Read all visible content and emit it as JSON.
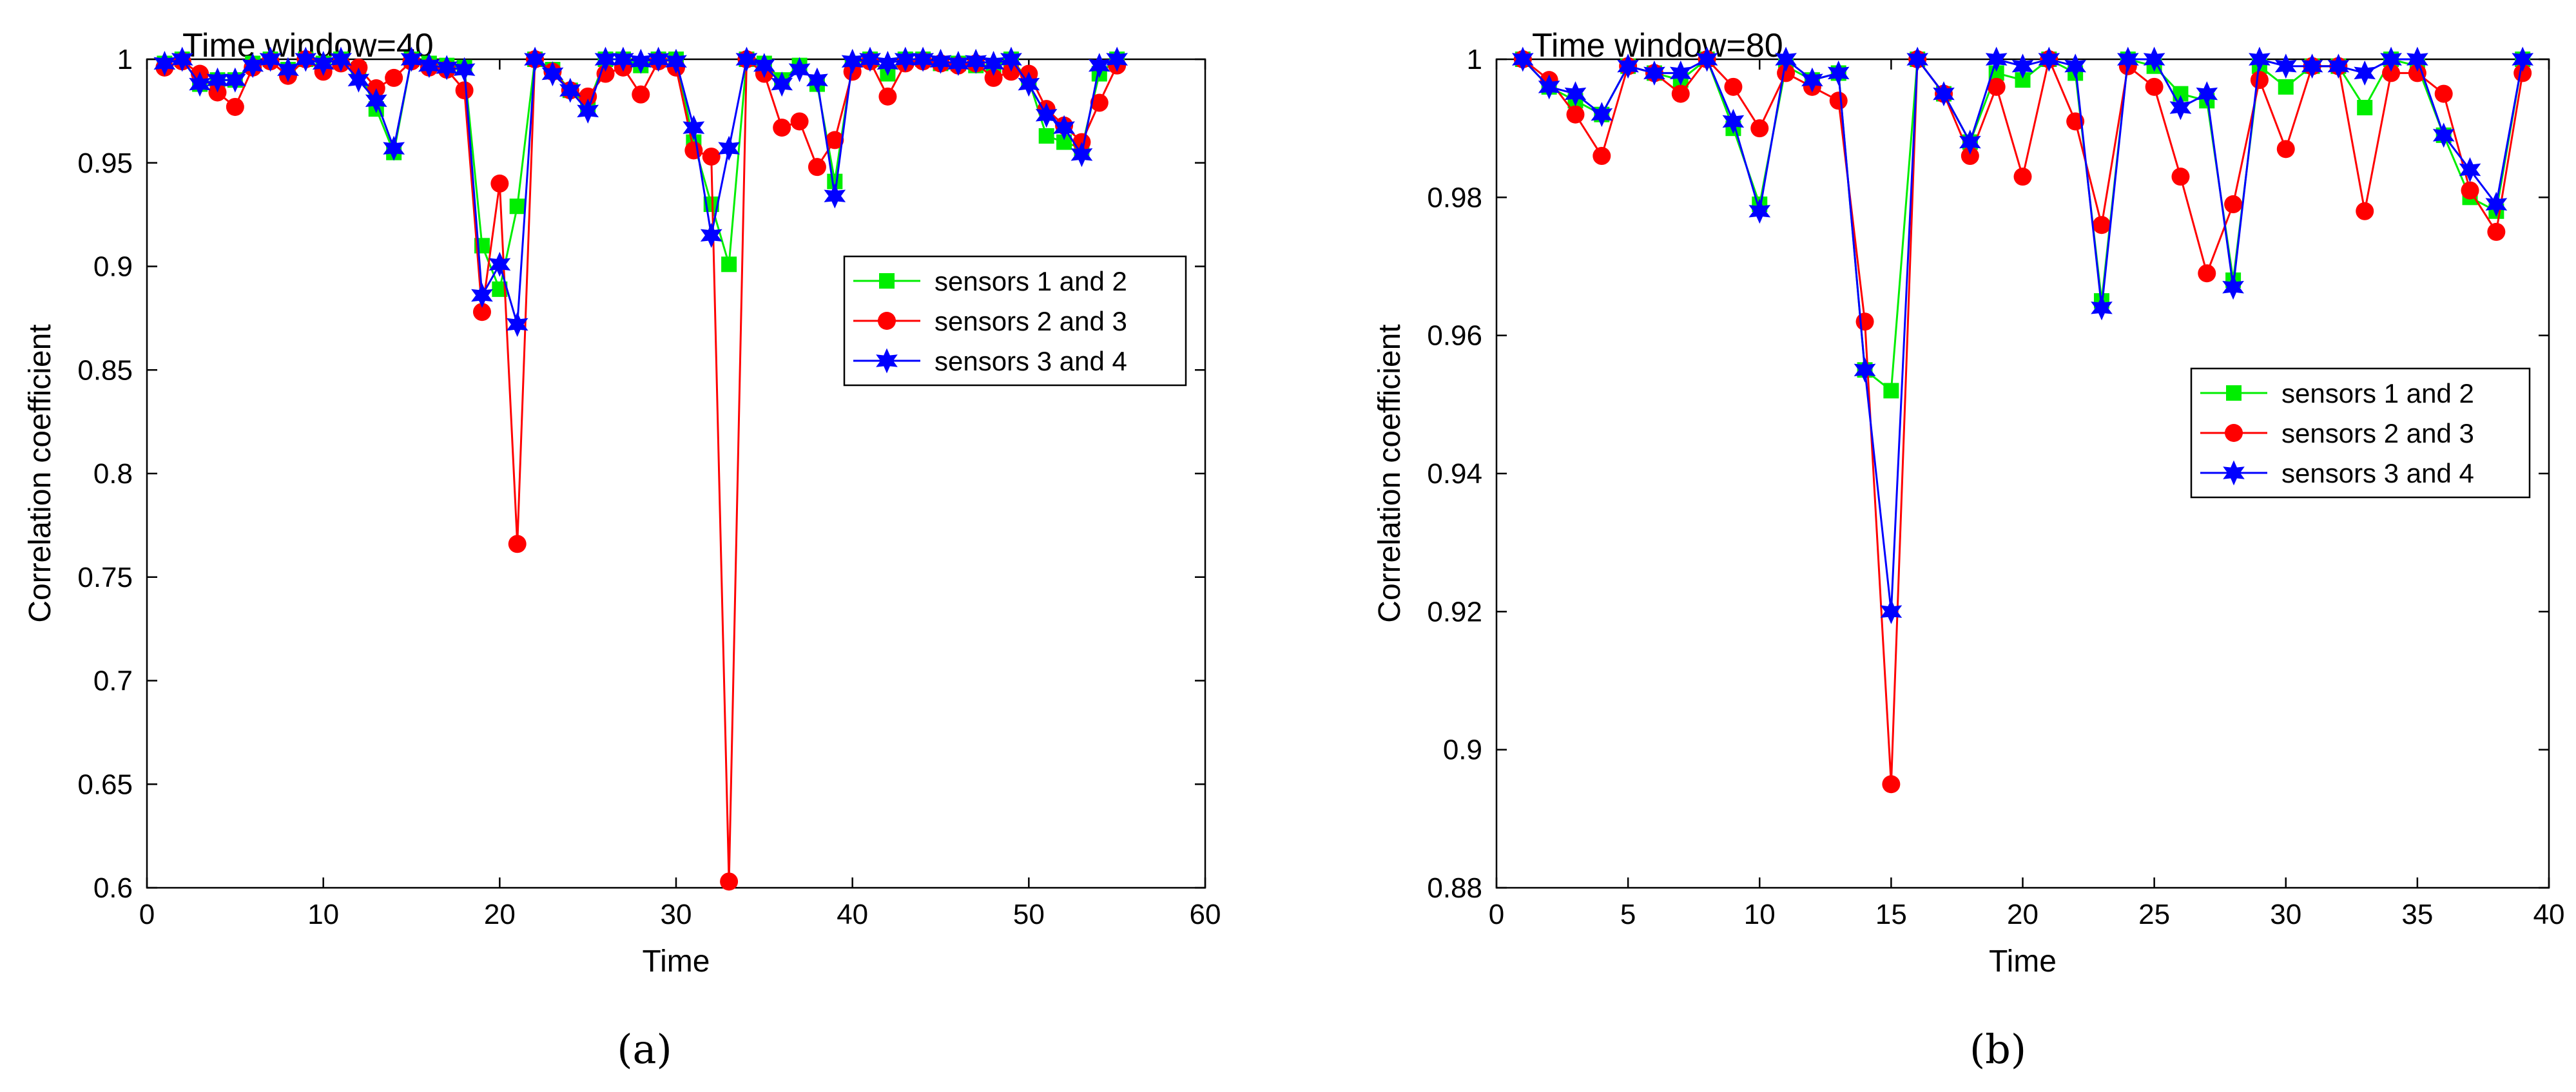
{
  "chart_data": [
    {
      "type": "line",
      "title": "Time window=40",
      "xlabel": "Time",
      "ylabel": "Correlation coefficient",
      "xlim": [
        0,
        60
      ],
      "ylim": [
        0.6,
        1.0
      ],
      "xticks": [
        0,
        10,
        20,
        30,
        40,
        50,
        60
      ],
      "xtick_labels": [
        "0",
        "10",
        "20",
        "30",
        "40",
        "50",
        "60"
      ],
      "yticks": [
        0.6,
        0.65,
        0.7,
        0.75,
        0.8,
        0.85,
        0.9,
        0.95,
        1.0
      ],
      "ytick_labels": [
        "0.6",
        "0.65",
        "0.7",
        "0.75",
        "0.8",
        "0.85",
        "0.9",
        "0.95",
        "1"
      ],
      "legend_position": "right-middle",
      "caption": "(a)",
      "series": [
        {
          "name": "sensors 1 and 2",
          "color": "#00ee00",
          "marker": "square",
          "x": [
            1,
            2,
            3,
            4,
            5,
            6,
            7,
            8,
            9,
            10,
            11,
            12,
            13,
            14,
            15,
            16,
            17,
            18,
            19,
            20,
            21,
            22,
            23,
            24,
            25,
            26,
            27,
            28,
            29,
            30,
            31,
            32,
            33,
            34,
            35,
            36,
            37,
            38,
            39,
            40,
            41,
            42,
            43,
            44,
            45,
            46,
            47,
            48,
            49,
            50,
            51,
            52,
            53,
            54,
            55
          ],
          "y": [
            0.998,
            1.0,
            0.988,
            0.99,
            0.99,
            0.998,
            1.0,
            0.995,
            1.0,
            0.998,
            1.0,
            0.995,
            0.976,
            0.955,
            1.0,
            0.998,
            0.997,
            0.996,
            0.91,
            0.889,
            0.929,
            1.0,
            0.995,
            0.985,
            0.978,
            1.0,
            1.0,
            0.997,
            1.0,
            1.0,
            0.96,
            0.93,
            0.901,
            1.0,
            0.998,
            0.99,
            0.997,
            0.988,
            0.941,
            0.998,
            1.0,
            0.993,
            1.0,
            1.0,
            0.998,
            0.998,
            0.997,
            0.997,
            1.0,
            0.99,
            0.963,
            0.96,
            0.957,
            0.993,
            1.0
          ]
        },
        {
          "name": "sensors 2 and 3",
          "color": "#ff0000",
          "marker": "circle",
          "x": [
            1,
            2,
            3,
            4,
            5,
            6,
            7,
            8,
            9,
            10,
            11,
            12,
            13,
            14,
            15,
            16,
            17,
            18,
            19,
            20,
            21,
            22,
            23,
            24,
            25,
            26,
            27,
            28,
            29,
            30,
            31,
            32,
            33,
            34,
            35,
            36,
            37,
            38,
            39,
            40,
            41,
            42,
            43,
            44,
            45,
            46,
            47,
            48,
            49,
            50,
            51,
            52,
            53,
            54,
            55
          ],
          "y": [
            0.996,
            0.999,
            0.993,
            0.984,
            0.977,
            0.996,
            0.999,
            0.992,
            1.0,
            0.994,
            0.998,
            0.996,
            0.986,
            0.991,
            0.999,
            0.996,
            0.995,
            0.985,
            0.878,
            0.94,
            0.766,
            1.0,
            0.994,
            0.985,
            0.982,
            0.993,
            0.996,
            0.983,
            0.999,
            0.996,
            0.956,
            0.953,
            0.603,
            1.0,
            0.993,
            0.967,
            0.97,
            0.948,
            0.961,
            0.994,
            0.999,
            0.982,
            0.998,
            0.999,
            0.998,
            0.997,
            0.998,
            0.991,
            0.994,
            0.993,
            0.976,
            0.968,
            0.96,
            0.979,
            0.997
          ]
        },
        {
          "name": "sensors 3 and 4",
          "color": "#0000ff",
          "marker": "hexagram",
          "x": [
            1,
            2,
            3,
            4,
            5,
            6,
            7,
            8,
            9,
            10,
            11,
            12,
            13,
            14,
            15,
            16,
            17,
            18,
            19,
            20,
            21,
            22,
            23,
            24,
            25,
            26,
            27,
            28,
            29,
            30,
            31,
            32,
            33,
            34,
            35,
            36,
            37,
            38,
            39,
            40,
            41,
            42,
            43,
            44,
            45,
            46,
            47,
            48,
            49,
            50,
            51,
            52,
            53,
            54,
            55
          ],
          "y": [
            0.998,
            1.0,
            0.988,
            0.99,
            0.99,
            0.997,
            1.0,
            0.995,
            1.0,
            0.998,
            1.0,
            0.99,
            0.98,
            0.957,
            1.0,
            0.997,
            0.996,
            0.995,
            0.886,
            0.901,
            0.872,
            1.0,
            0.993,
            0.985,
            0.975,
            1.0,
            1.0,
            0.999,
            1.0,
            0.999,
            0.967,
            0.915,
            0.957,
            1.0,
            0.997,
            0.988,
            0.995,
            0.99,
            0.934,
            0.999,
            1.0,
            0.998,
            1.0,
            1.0,
            0.999,
            0.998,
            0.999,
            0.998,
            1.0,
            0.988,
            0.973,
            0.967,
            0.954,
            0.997,
            1.0
          ]
        }
      ]
    },
    {
      "type": "line",
      "title": "Time window=80",
      "xlabel": "Time",
      "ylabel": "Correlation coefficient",
      "xlim": [
        0,
        40
      ],
      "ylim": [
        0.88,
        1.0
      ],
      "xticks": [
        0,
        5,
        10,
        15,
        20,
        25,
        30,
        35,
        40
      ],
      "xtick_labels": [
        "0",
        "5",
        "10",
        "15",
        "20",
        "25",
        "30",
        "35",
        "40"
      ],
      "yticks": [
        0.88,
        0.9,
        0.92,
        0.94,
        0.96,
        0.98,
        1.0
      ],
      "ytick_labels": [
        "0.88",
        "0.9",
        "0.92",
        "0.94",
        "0.96",
        "0.98",
        "1"
      ],
      "legend_position": "right-middle",
      "caption": "(b)",
      "series": [
        {
          "name": "sensors 1 and 2",
          "color": "#00ee00",
          "marker": "square",
          "x": [
            1,
            2,
            3,
            4,
            5,
            6,
            7,
            8,
            9,
            10,
            11,
            12,
            13,
            14,
            15,
            16,
            17,
            18,
            19,
            20,
            21,
            22,
            23,
            24,
            25,
            26,
            27,
            28,
            29,
            30,
            31,
            32,
            33,
            34,
            35,
            36,
            37,
            38,
            39
          ],
          "y": [
            1.0,
            0.996,
            0.994,
            0.992,
            0.999,
            0.998,
            0.997,
            1.0,
            0.99,
            0.979,
            0.999,
            0.997,
            0.998,
            0.955,
            0.952,
            1.0,
            0.995,
            0.988,
            0.998,
            0.997,
            1.0,
            0.998,
            0.965,
            1.0,
            0.999,
            0.995,
            0.994,
            0.968,
            0.999,
            0.996,
            0.999,
            0.999,
            0.993,
            1.0,
            0.999,
            0.989,
            0.98,
            0.978,
            1.0
          ]
        },
        {
          "name": "sensors 2 and 3",
          "color": "#ff0000",
          "marker": "circle",
          "x": [
            1,
            2,
            3,
            4,
            5,
            6,
            7,
            8,
            9,
            10,
            11,
            12,
            13,
            14,
            15,
            16,
            17,
            18,
            19,
            20,
            21,
            22,
            23,
            24,
            25,
            26,
            27,
            28,
            29,
            30,
            31,
            32,
            33,
            34,
            35,
            36,
            37,
            38,
            39
          ],
          "y": [
            1.0,
            0.997,
            0.992,
            0.986,
            0.999,
            0.998,
            0.995,
            1.0,
            0.996,
            0.99,
            0.998,
            0.996,
            0.994,
            0.962,
            0.895,
            1.0,
            0.995,
            0.986,
            0.996,
            0.983,
            1.0,
            0.991,
            0.976,
            0.999,
            0.996,
            0.983,
            0.969,
            0.979,
            0.997,
            0.987,
            0.999,
            0.999,
            0.978,
            0.998,
            0.998,
            0.995,
            0.981,
            0.975,
            0.998
          ]
        },
        {
          "name": "sensors 3 and 4",
          "color": "#0000ff",
          "marker": "hexagram",
          "x": [
            1,
            2,
            3,
            4,
            5,
            6,
            7,
            8,
            9,
            10,
            11,
            12,
            13,
            14,
            15,
            16,
            17,
            18,
            19,
            20,
            21,
            22,
            23,
            24,
            25,
            26,
            27,
            28,
            29,
            30,
            31,
            32,
            33,
            34,
            35,
            36,
            37,
            38,
            39
          ],
          "y": [
            1.0,
            0.996,
            0.995,
            0.992,
            0.999,
            0.998,
            0.998,
            1.0,
            0.991,
            0.978,
            1.0,
            0.997,
            0.998,
            0.955,
            0.92,
            1.0,
            0.995,
            0.988,
            1.0,
            0.999,
            1.0,
            0.999,
            0.964,
            1.0,
            1.0,
            0.993,
            0.995,
            0.967,
            1.0,
            0.999,
            0.999,
            0.999,
            0.998,
            1.0,
            1.0,
            0.989,
            0.984,
            0.979,
            1.0
          ]
        }
      ]
    }
  ]
}
